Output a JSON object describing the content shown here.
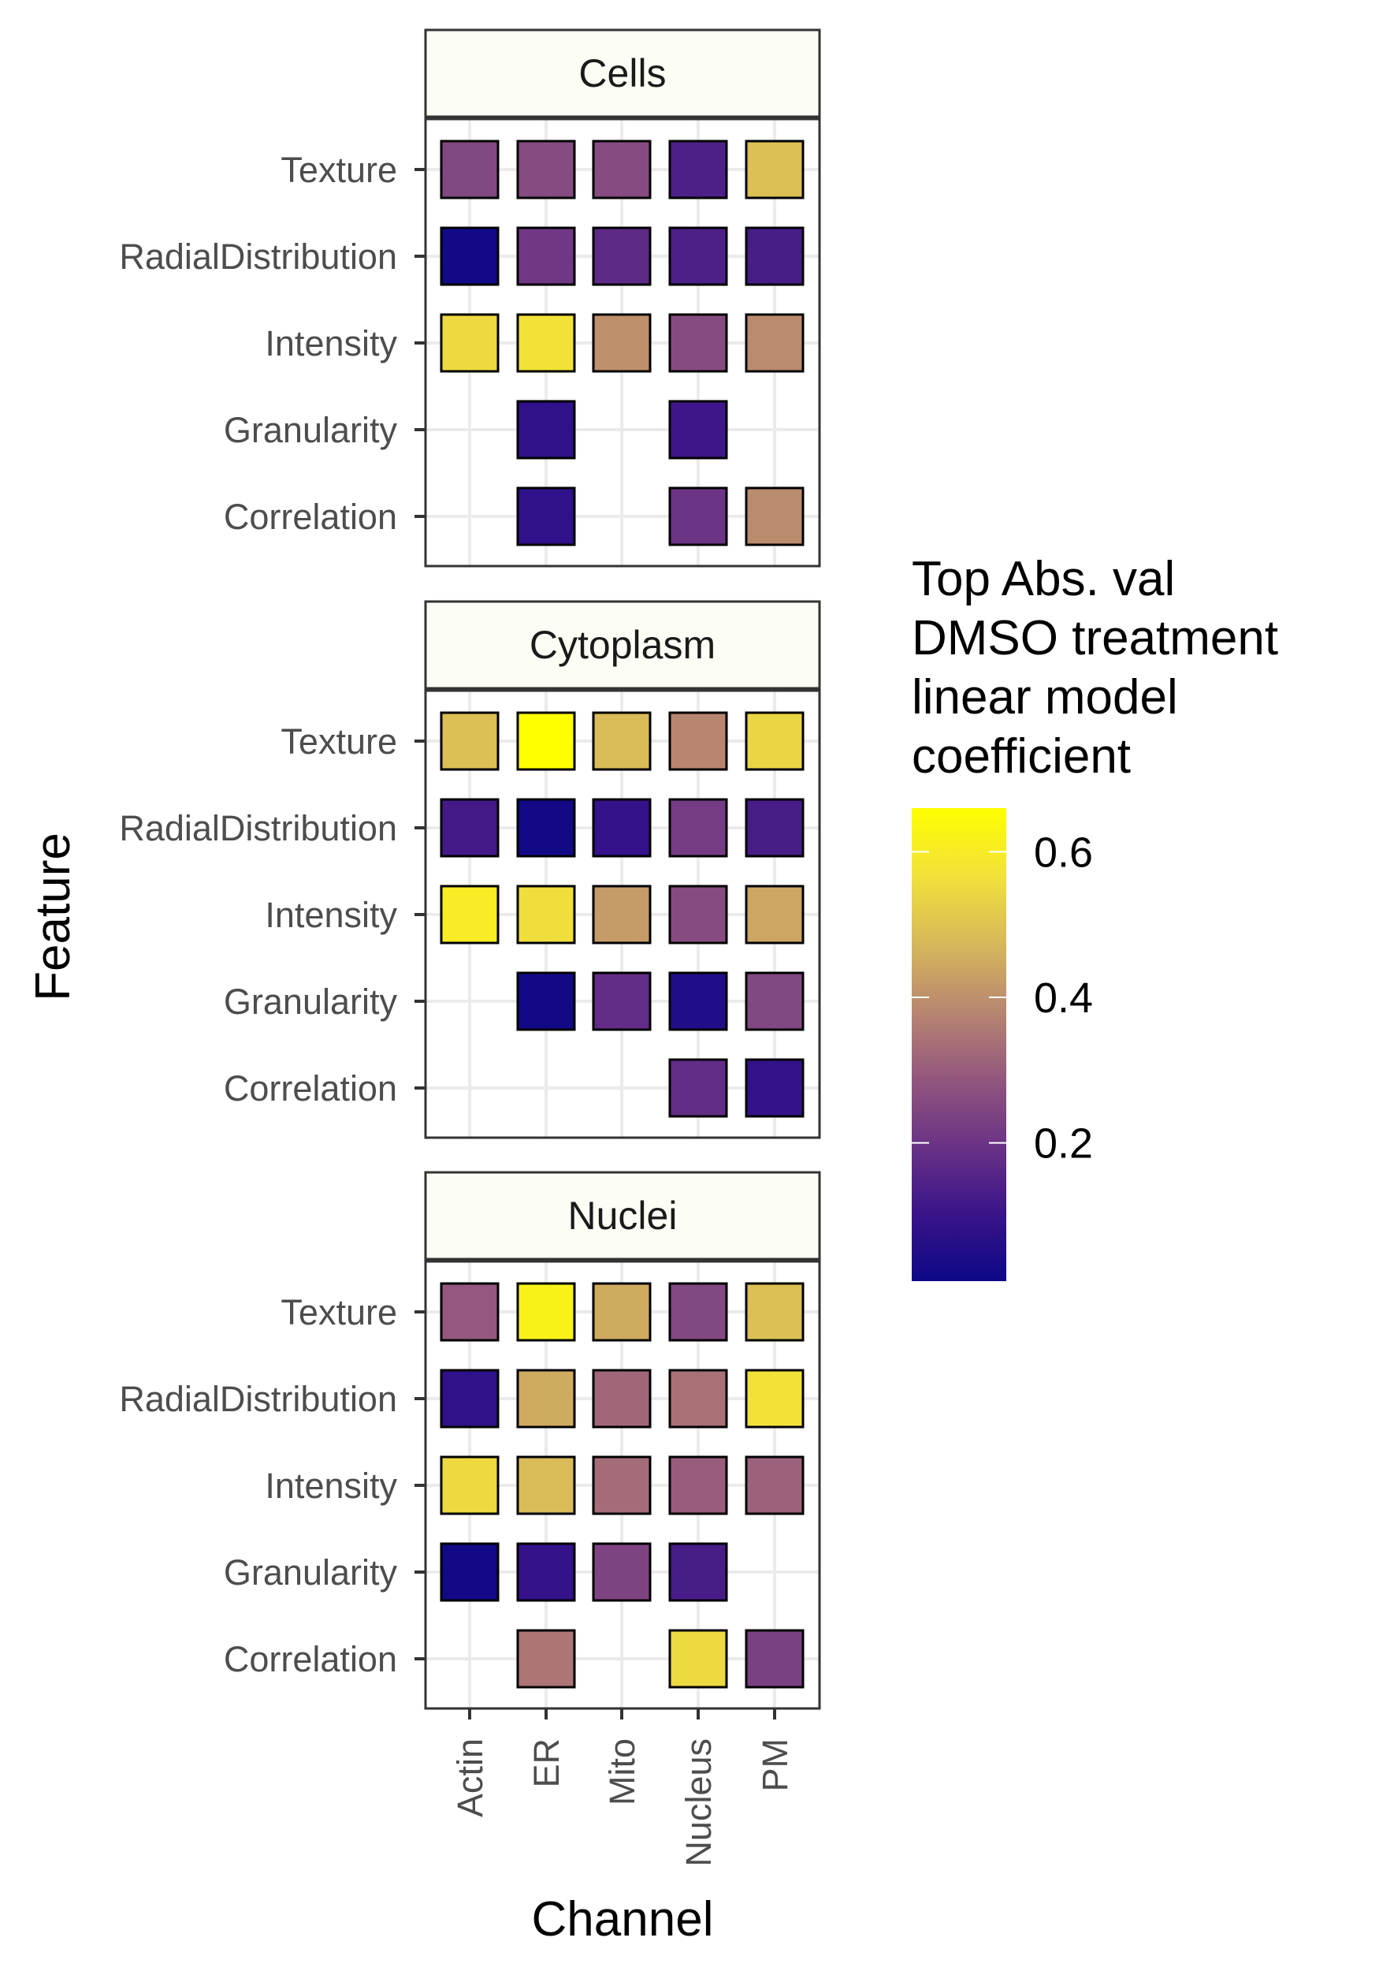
{
  "chart_data": {
    "type": "heatmap",
    "x_label": "Channel",
    "y_label": "Feature",
    "channels": [
      "Actin",
      "ER",
      "Mito",
      "Nucleus",
      "PM"
    ],
    "features": [
      "Texture",
      "RadialDistribution",
      "Intensity",
      "Granularity",
      "Correlation"
    ],
    "panels": [
      {
        "name": "Cells",
        "values": [
          [
            0.25,
            0.26,
            0.26,
            0.14,
            0.49
          ],
          [
            0.02,
            0.21,
            0.17,
            0.14,
            0.13
          ],
          [
            0.55,
            0.57,
            0.4,
            0.26,
            0.39
          ],
          [
            null,
            0.08,
            null,
            0.11,
            null
          ],
          [
            null,
            0.08,
            null,
            0.2,
            0.39
          ]
        ]
      },
      {
        "name": "Cytoplasm",
        "values": [
          [
            0.49,
            0.66,
            0.48,
            0.38,
            0.54
          ],
          [
            0.12,
            0.02,
            0.09,
            0.22,
            0.13
          ],
          [
            0.6,
            0.56,
            0.42,
            0.26,
            0.44
          ],
          [
            null,
            0.02,
            0.18,
            0.05,
            0.25
          ],
          [
            null,
            null,
            null,
            0.18,
            0.09
          ]
        ]
      },
      {
        "name": "Nuclei",
        "values": [
          [
            0.29,
            0.62,
            0.45,
            0.25,
            0.49
          ],
          [
            0.08,
            0.45,
            0.32,
            0.34,
            0.57
          ],
          [
            0.55,
            0.48,
            0.33,
            0.3,
            0.31
          ],
          [
            0.02,
            0.09,
            0.24,
            0.13,
            null
          ],
          [
            null,
            0.35,
            null,
            0.55,
            0.23
          ]
        ]
      }
    ],
    "legend": {
      "title": [
        "Top Abs. val",
        "DMSO treatment",
        "linear model",
        "coefficient"
      ],
      "range": [
        0.01,
        0.66
      ],
      "ticks": [
        0.2,
        0.4,
        0.6
      ],
      "tick_labels": [
        "0.2",
        "0.4",
        "0.6"
      ],
      "placement": "right"
    },
    "colors": {
      "scale": [
        "#0d0887",
        "#3a1489",
        "#6a3285",
        "#93577e",
        "#b88670",
        "#d7b85a",
        "#f2e13a",
        "#ffff00"
      ],
      "panel_border": "#333333",
      "strip_fill": "#fcfdf4",
      "grid": "#ebebeb",
      "tile_border": "#000000"
    },
    "grid": true
  }
}
